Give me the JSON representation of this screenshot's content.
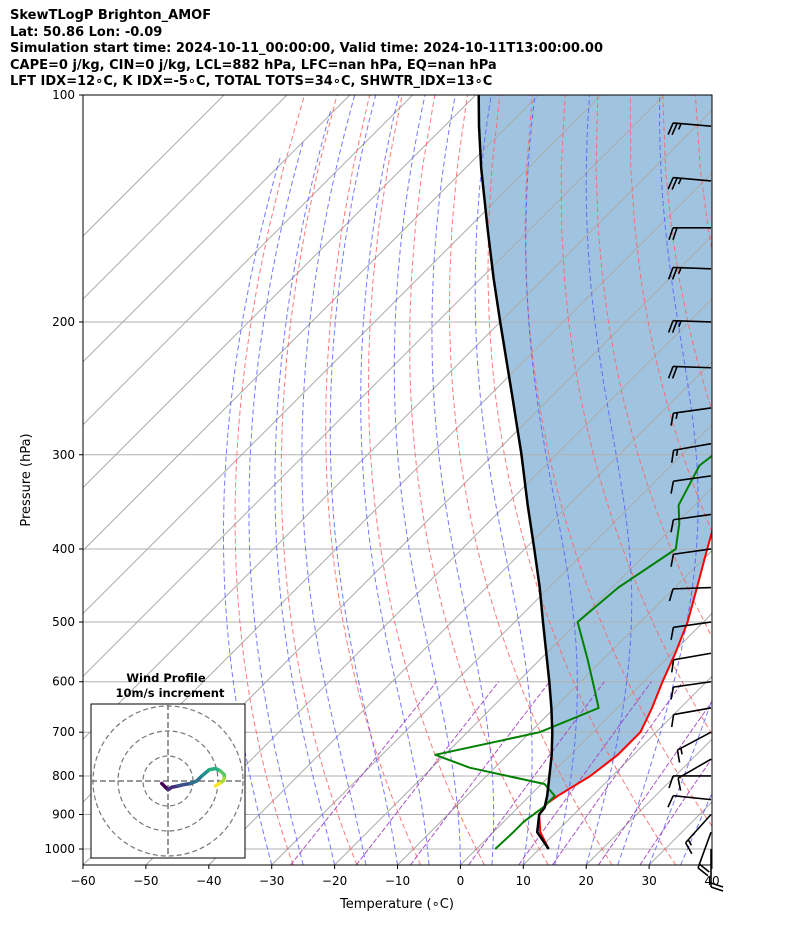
{
  "header": {
    "line1": "SkewTLogP Brighton_AMOF",
    "line2": "Lat: 50.86   Lon: -0.09",
    "line3": "Simulation start time: 2024-10-11_00:00:00, Valid time: 2024-10-11T13:00:00.00",
    "line4": "CAPE=0 j/kg, CIN=0 j/kg, LCL=882 hPa, LFC=nan hPa, EQ=nan hPa",
    "line5": "LFT IDX=12∘C, K IDX=-5∘C, TOTAL TOTS=34∘C, SHWTR_IDX=13∘C"
  },
  "colors": {
    "temperature": "#ff0000",
    "dewpoint": "#008000",
    "parcel": "#000000",
    "cape_fill": "#a0c4e0",
    "dry_adiabat": "#ff6060",
    "moist_adiabat": "#5555ff",
    "mixing_ratio": "#a040c0",
    "isotherm": "#aaaaaa"
  },
  "chart_data": [
    {
      "type": "line",
      "subtype": "skew-t log-p",
      "xlabel": "Temperature (∘C)",
      "ylabel": "Pressure (hPa)",
      "xlim": [
        -60,
        40
      ],
      "ylim": [
        1050,
        100
      ],
      "y_scale": "log",
      "x_ticks": [
        "−60",
        "−50",
        "−40",
        "−30",
        "−20",
        "−10",
        "0",
        "10",
        "20",
        "30",
        "40"
      ],
      "y_ticks": [
        "100",
        "200",
        "300",
        "400",
        "500",
        "600",
        "700",
        "800",
        "900",
        "1000"
      ],
      "grid": true,
      "series": [
        {
          "key": "temperature",
          "pressure": [
            1000,
            950,
            900,
            870,
            850,
            800,
            750,
            700,
            650,
            600,
            550,
            500,
            450,
            400,
            350,
            300,
            280,
            250,
            220,
            200,
            180,
            160,
            140,
            130,
            120,
            110,
            100
          ],
          "values": [
            11.5,
            7.5,
            4.5,
            4.0,
            4.5,
            6.5,
            7.5,
            7.5,
            5.5,
            3.0,
            0.5,
            -2.5,
            -6.5,
            -11.0,
            -16.0,
            -21.5,
            -23.5,
            -27.0,
            -31.0,
            -35.5,
            -41.0,
            -47.0,
            -55.0,
            -60.5,
            -66.0,
            -72.5,
            -79.0
          ]
        },
        {
          "key": "dewpoint",
          "pressure": [
            1000,
            950,
            920,
            880,
            850,
            820,
            780,
            750,
            700,
            650,
            620,
            560,
            500,
            450,
            400,
            370,
            350,
            310,
            300,
            280,
            250,
            220,
            200,
            180,
            160,
            140,
            120,
            100
          ],
          "values": [
            3.0,
            3.2,
            3.2,
            4.0,
            4.0,
            0.5,
            -14.0,
            -21.5,
            -8.5,
            -3.0,
            -6.0,
            -12.5,
            -20.0,
            -19.0,
            -16.0,
            -19.5,
            -22.5,
            -25.5,
            -25.0,
            -25.5,
            -28.0,
            -32.5,
            -36.0,
            -40.0,
            -46.0,
            -56.0,
            -64.0,
            -72.0
          ]
        },
        {
          "key": "parcel",
          "pressure": [
            1000,
            950,
            900,
            882,
            850,
            800,
            750,
            700,
            650,
            600,
            550,
            500,
            450,
            400,
            350,
            300,
            250,
            200,
            175,
            150,
            125,
            110,
            100
          ],
          "values": [
            11.5,
            7.0,
            4.5,
            4.3,
            2.8,
            0.0,
            -3.0,
            -6.5,
            -10.5,
            -15.0,
            -20.0,
            -25.5,
            -31.5,
            -38.5,
            -46.5,
            -55.5,
            -66.5,
            -80.0,
            -88.0,
            -97.0,
            -107.5,
            -114.5,
            -119.5
          ]
        }
      ],
      "wind_barbs": {
        "pressure": [
          110,
          130,
          150,
          170,
          200,
          230,
          260,
          290,
          320,
          360,
          400,
          450,
          500,
          550,
          600,
          650,
          700,
          760,
          800,
          860,
          900,
          950,
          1000
        ],
        "speed_kt": [
          25,
          25,
          20,
          25,
          25,
          20,
          15,
          15,
          10,
          10,
          10,
          10,
          10,
          10,
          10,
          10,
          15,
          10,
          10,
          10,
          15,
          20,
          20
        ],
        "direction_deg": [
          275,
          275,
          270,
          272,
          272,
          272,
          262,
          260,
          262,
          262,
          262,
          268,
          262,
          260,
          262,
          260,
          242,
          240,
          270,
          276,
          222,
          200,
          180
        ]
      }
    },
    {
      "type": "hodograph",
      "title": "Wind Profile",
      "subtitle": "10m/s increment",
      "ring_step_ms": 10,
      "rings": 3,
      "u": [
        -2.5,
        -1.0,
        0.0,
        1.5,
        4.0,
        6.0,
        9.0,
        11.5,
        13.5,
        16.5,
        19.0,
        21.0,
        22.5,
        22.5,
        22.0,
        20.5,
        19.0
      ],
      "v": [
        -1.0,
        -2.5,
        -3.5,
        -2.5,
        -2.0,
        -1.5,
        -1.0,
        0.0,
        2.0,
        4.5,
        5.0,
        4.0,
        2.5,
        1.0,
        0.0,
        -1.0,
        -2.0
      ]
    }
  ]
}
